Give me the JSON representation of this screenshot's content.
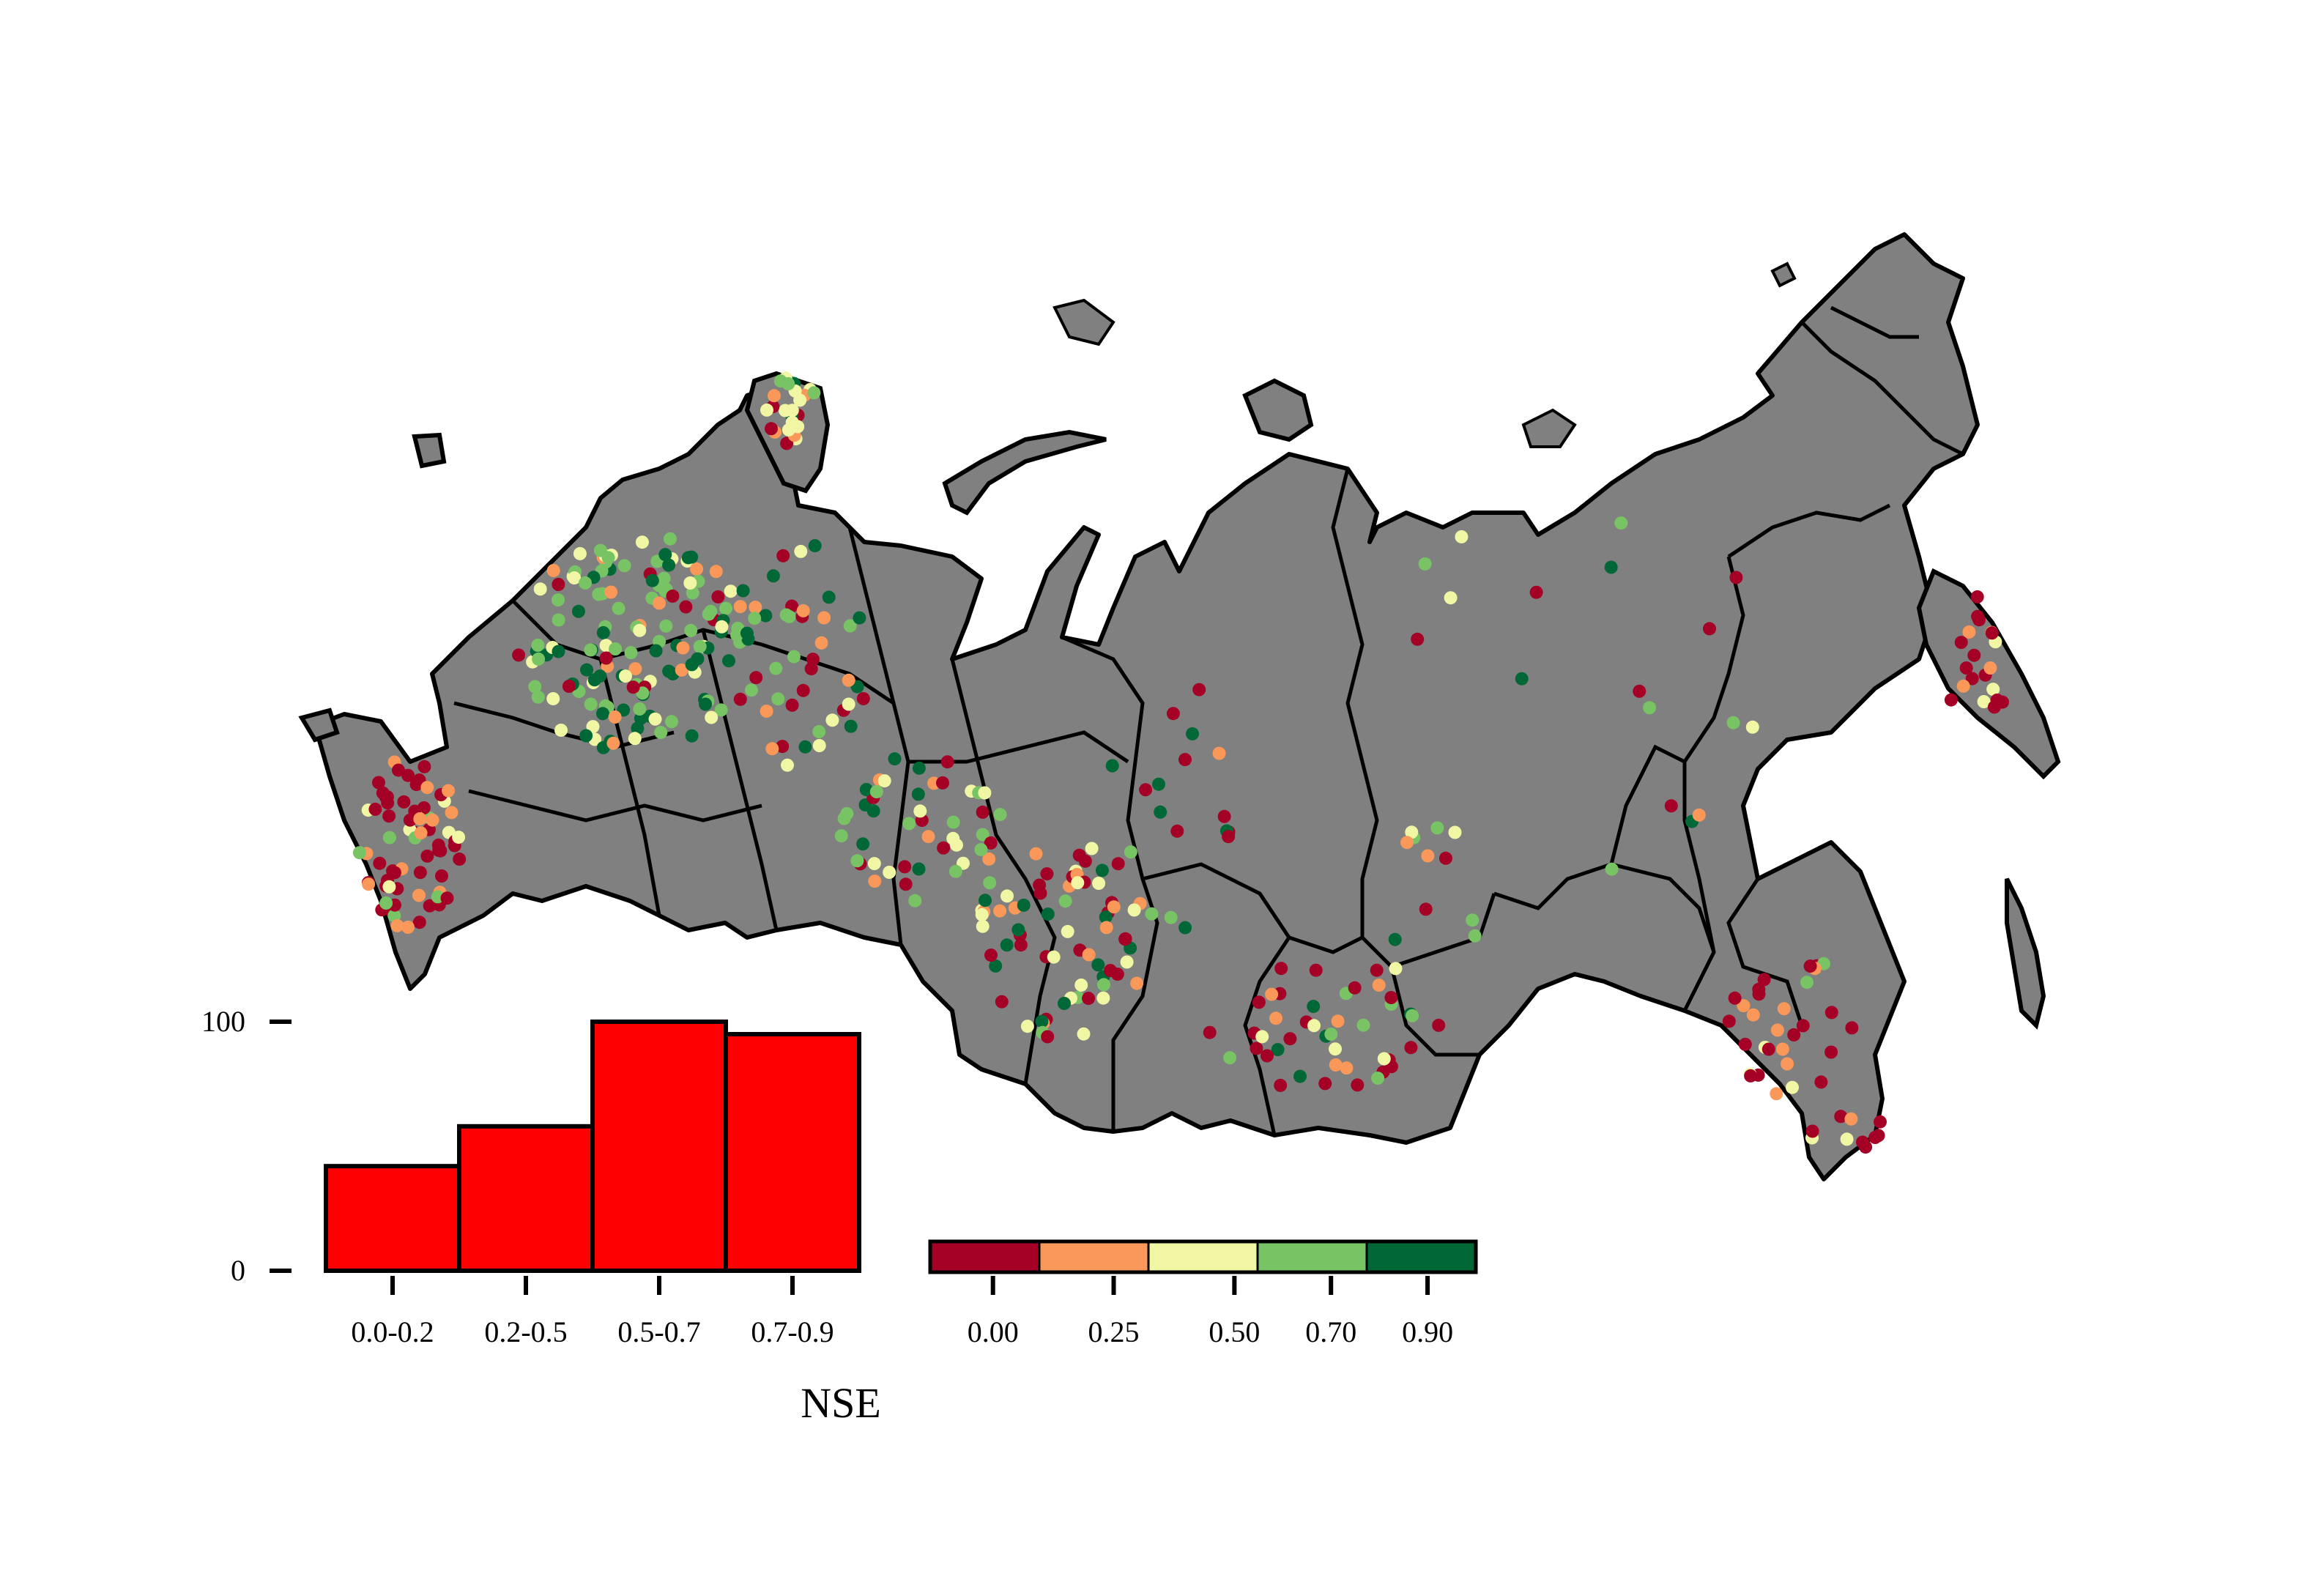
{
  "colors": {
    "land": "#808080",
    "border": "#000000",
    "histogram_bar": "#ff0000",
    "background": "#ffffff"
  },
  "chart_data": [
    {
      "type": "map",
      "description_visible": "station points colored by NSE over a map of Russia",
      "colorbar": {
        "ticks": [
          "0.00",
          "0.25",
          "0.50",
          "0.70",
          "0.90"
        ],
        "bins": [
          {
            "color": "#a50026"
          },
          {
            "color": "#f99858"
          },
          {
            "color": "#f0f6a4"
          },
          {
            "color": "#78c465"
          },
          {
            "color": "#006837"
          }
        ]
      }
    },
    {
      "type": "bar",
      "categories": [
        "0.0-0.2",
        "0.2-0.5",
        "0.5-0.7",
        "0.7-0.9"
      ],
      "values": [
        42,
        58,
        100,
        95
      ],
      "xlabel": "NSE",
      "ylabel": "",
      "yticks": [
        "0",
        "100"
      ],
      "ylim": [
        0,
        100
      ]
    }
  ]
}
